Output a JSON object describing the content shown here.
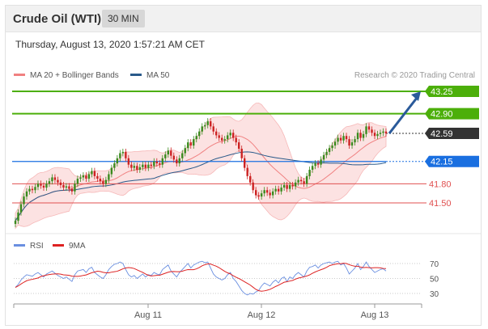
{
  "header": {
    "title": "Crude Oil (WTI)",
    "timeframe": "30 MIN"
  },
  "datetime": "Thursday, August 13, 2020 1:57:21 AM CET",
  "legend_main": [
    {
      "label": "MA 20 + Bollinger Bands",
      "color": "#f08080"
    },
    {
      "label": "MA 50",
      "color": "#2a5a8a"
    }
  ],
  "legend_rsi": [
    {
      "label": "RSI",
      "color": "#6a8fe0"
    },
    {
      "label": "9MA",
      "color": "#dd2222"
    }
  ],
  "credit": "Research © 2020 Trading Central",
  "colors": {
    "up": "#3a8a1e",
    "down": "#cc2222",
    "green_level": "#4caf0a",
    "blue_level": "#1a6fe0",
    "red_level": "#e05050",
    "current": "#333333",
    "arrow": "#2a5a9a"
  },
  "chart_data": {
    "type": "candlestick",
    "price_levels": [
      {
        "label": "43.25",
        "value": 43.25,
        "style": "resistance"
      },
      {
        "label": "42.90",
        "value": 42.9,
        "style": "resistance"
      },
      {
        "label": "42.59",
        "value": 42.59,
        "style": "current"
      },
      {
        "label": "42.15",
        "value": 42.15,
        "style": "pivot"
      },
      {
        "label": "41.80",
        "value": 41.8,
        "style": "support"
      },
      {
        "label": "41.50",
        "value": 41.5,
        "style": "support"
      }
    ],
    "x_ticks": [
      "Aug 11",
      "Aug 12",
      "Aug 13"
    ],
    "rsi_ticks": [
      "70",
      "50",
      "30"
    ],
    "ylim": [
      41.2,
      43.4
    ],
    "closes": [
      41.22,
      41.35,
      41.48,
      41.6,
      41.68,
      41.72,
      41.7,
      41.75,
      41.8,
      41.77,
      41.74,
      41.8,
      41.84,
      41.9,
      41.86,
      41.82,
      41.78,
      41.74,
      41.76,
      41.72,
      41.68,
      41.8,
      41.88,
      41.9,
      41.93,
      41.88,
      41.95,
      42.0,
      41.92,
      41.88,
      41.84,
      41.8,
      41.86,
      41.95,
      42.05,
      42.12,
      42.2,
      42.28,
      42.3,
      42.2,
      42.1,
      42.05,
      42.08,
      42.02,
      42.06,
      42.1,
      42.05,
      42.1,
      42.08,
      42.15,
      42.12,
      42.1,
      42.2,
      42.26,
      42.32,
      42.24,
      42.18,
      42.12,
      42.2,
      42.28,
      42.36,
      42.45,
      42.4,
      42.5,
      42.55,
      42.62,
      42.7,
      42.72,
      42.78,
      42.7,
      42.62,
      42.56,
      42.52,
      42.48,
      42.5,
      42.56,
      42.6,
      42.52,
      42.45,
      42.35,
      42.2,
      42.05,
      41.92,
      41.82,
      41.7,
      41.62,
      41.6,
      41.65,
      41.7,
      41.66,
      41.62,
      41.68,
      41.72,
      41.68,
      41.74,
      41.78,
      41.72,
      41.78,
      41.76,
      41.82,
      41.86,
      41.84,
      41.8,
      41.92,
      42.02,
      42.08,
      42.12,
      42.1,
      42.18,
      42.25,
      42.3,
      42.36,
      42.4,
      42.46,
      42.52,
      42.48,
      42.55,
      42.5,
      42.4,
      42.45,
      42.5,
      42.6,
      42.52,
      42.58,
      42.7,
      42.65,
      42.6,
      42.55,
      42.58,
      42.6,
      42.62,
      42.59
    ],
    "rsi": [
      38,
      42,
      48,
      52,
      55,
      54,
      53,
      56,
      58,
      55,
      52,
      56,
      58,
      60,
      57,
      54,
      52,
      50,
      52,
      49,
      46,
      55,
      60,
      61,
      62,
      58,
      63,
      65,
      58,
      55,
      52,
      50,
      55,
      62,
      66,
      69,
      70,
      72,
      70,
      62,
      55,
      52,
      54,
      50,
      53,
      56,
      52,
      55,
      54,
      58,
      56,
      55,
      62,
      65,
      68,
      60,
      56,
      52,
      58,
      62,
      66,
      70,
      64,
      68,
      70,
      72,
      73,
      71,
      72,
      64,
      56,
      52,
      50,
      48,
      50,
      55,
      58,
      50,
      46,
      40,
      34,
      30,
      28,
      30,
      29,
      32,
      34,
      40,
      44,
      42,
      40,
      45,
      48,
      44,
      50,
      52,
      46,
      52,
      50,
      55,
      58,
      55,
      52,
      60,
      65,
      66,
      68,
      64,
      68,
      70,
      71,
      72,
      70,
      72,
      73,
      68,
      70,
      64,
      56,
      60,
      64,
      70,
      62,
      66,
      72,
      66,
      62,
      58,
      60,
      62,
      63,
      60
    ]
  }
}
